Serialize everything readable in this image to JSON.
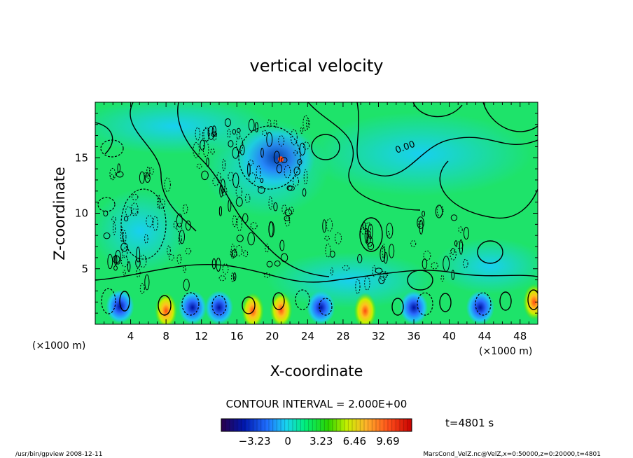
{
  "chart_data": {
    "type": "heatmap",
    "title": "vertical velocity",
    "xlabel": "X-coordinate",
    "ylabel": "Z-coordinate",
    "x_unit_label": "(×1000 m)",
    "z_unit_label": "(×1000 m)",
    "xlim": [
      0,
      50
    ],
    "ylim": [
      0,
      20
    ],
    "x_ticks": [
      "4",
      "8",
      "12",
      "16",
      "20",
      "24",
      "28",
      "32",
      "36",
      "40",
      "44",
      "48"
    ],
    "y_ticks": [
      "5",
      "10",
      "15"
    ],
    "contour_interval_text": "CONTOUR INTERVAL = 2.000E+00",
    "contour_label": "0.00",
    "time_text": "t=4801 s",
    "colorbar": {
      "ticks": [
        "−3.23",
        "0",
        "3.23",
        "6.46",
        "9.69"
      ],
      "colors": [
        "#2a004a",
        "#0018b0",
        "#1f6fff",
        "#19d4f0",
        "#00ef7a",
        "#2ad400",
        "#c8f000",
        "#ffb22a",
        "#ff4e1a",
        "#c80000"
      ]
    },
    "features": [
      {
        "name": "updraft",
        "x": 8,
        "z": 1.2
      },
      {
        "name": "updraft",
        "x": 17.8,
        "z": 1.2
      },
      {
        "name": "updraft",
        "x": 21,
        "z": 1.3
      },
      {
        "name": "updraft",
        "x": 30.5,
        "z": 1.2
      },
      {
        "name": "updraft",
        "x": 49.6,
        "z": 2.0
      },
      {
        "name": "downdraft",
        "x": 2.8,
        "z": 1.6
      },
      {
        "name": "downdraft",
        "x": 11,
        "z": 1.5
      },
      {
        "name": "downdraft",
        "x": 14,
        "z": 1.5
      },
      {
        "name": "downdraft",
        "x": 25.5,
        "z": 1.5
      },
      {
        "name": "downdraft",
        "x": 36,
        "z": 1.5
      },
      {
        "name": "downdraft",
        "x": 43.5,
        "z": 1.5
      },
      {
        "name": "convective-core",
        "x": 20.5,
        "z": 15.0
      }
    ]
  },
  "footer": {
    "left": "/usr/bin/gpview   2008-12-11",
    "right": "MarsCond_VelZ.nc@VelZ,x=0:50000,z=0:20000,t=4801"
  }
}
